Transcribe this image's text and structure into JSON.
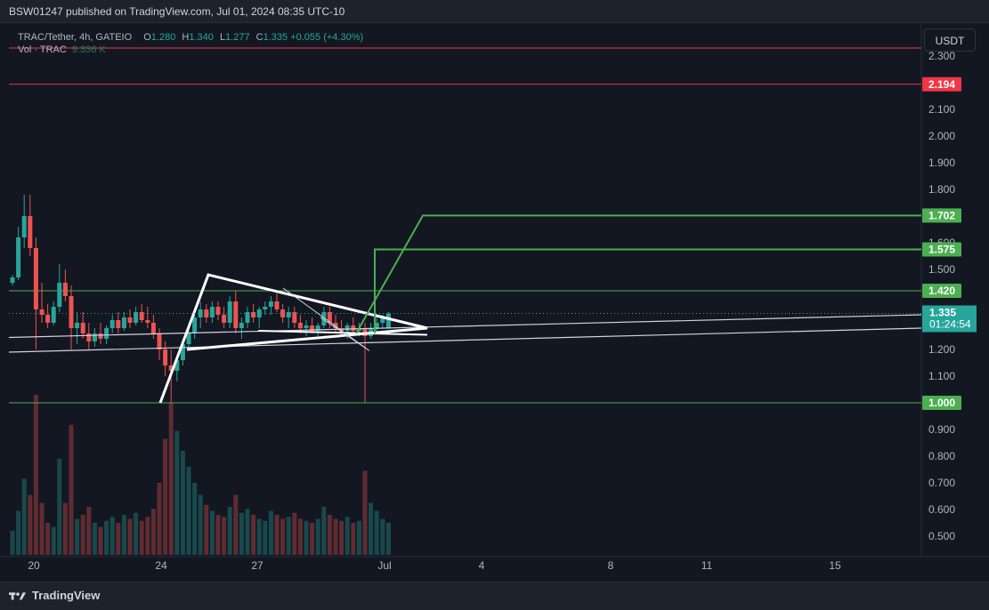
{
  "header": {
    "text": "BSW01247 published on TradingView.com, Jul 01, 2024 08:35 UTC-10"
  },
  "legend": {
    "symbol": "TRAC/Tether, 4h, GATEIO",
    "open_label": "O",
    "open": "1.280",
    "high_label": "H",
    "high": "1.340",
    "low_label": "L",
    "low": "1.277",
    "close_label": "C",
    "close": "1.335",
    "change": "+0.055 (+4.30%)",
    "vol_label": "Vol · TRAC",
    "vol_value": "9.336 K"
  },
  "currency_button": "USDT",
  "footer": {
    "brand": "TradingView"
  },
  "colors": {
    "up": "#26a69a",
    "down": "#ef5350",
    "green_line": "#4caf50",
    "red_line": "#f23645",
    "bg": "#131722"
  },
  "chart_data": {
    "type": "candlestick",
    "symbol": "TRAC/Tether",
    "timeframe": "4h",
    "exchange": "GATEIO",
    "y_ticks": [
      "2.300",
      "2.100",
      "2.000",
      "1.900",
      "1.800",
      "1.600",
      "1.500",
      "1.200",
      "1.100",
      "0.900",
      "0.800",
      "0.700",
      "0.600",
      "0.500"
    ],
    "x_ticks": [
      "20",
      "24",
      "27",
      "Jul",
      "4",
      "8",
      "11",
      "15"
    ],
    "price_labels": [
      {
        "value": "2.194",
        "color": "#f23645"
      },
      {
        "value": "1.702",
        "color": "#4caf50"
      },
      {
        "value": "1.575",
        "color": "#4caf50"
      },
      {
        "value": "1.420",
        "color": "#4caf50"
      },
      {
        "value": "1.000",
        "color": "#4caf50"
      }
    ],
    "current_price": {
      "value": "1.335",
      "countdown": "01:24:54",
      "color": "#26a69a"
    },
    "horizontal_lines": [
      {
        "price": 2.33,
        "color": "#f23645"
      },
      {
        "price": 2.194,
        "color": "#f23645"
      },
      {
        "price": 1.42,
        "color": "#4caf50"
      },
      {
        "price": 1.0,
        "color": "#4caf50"
      }
    ],
    "candles": [
      [
        1.45,
        1.48,
        1.44,
        1.47
      ],
      [
        1.47,
        1.66,
        1.46,
        1.62
      ],
      [
        1.62,
        1.78,
        1.58,
        1.7
      ],
      [
        1.7,
        1.78,
        1.55,
        1.58
      ],
      [
        1.58,
        1.62,
        1.2,
        1.35
      ],
      [
        1.35,
        1.45,
        1.3,
        1.33
      ],
      [
        1.33,
        1.37,
        1.28,
        1.3
      ],
      [
        1.3,
        1.38,
        1.29,
        1.36
      ],
      [
        1.36,
        1.52,
        1.34,
        1.45
      ],
      [
        1.45,
        1.5,
        1.38,
        1.4
      ],
      [
        1.4,
        1.44,
        1.2,
        1.28
      ],
      [
        1.28,
        1.34,
        1.22,
        1.3
      ],
      [
        1.3,
        1.34,
        1.24,
        1.26
      ],
      [
        1.26,
        1.3,
        1.2,
        1.23
      ],
      [
        1.23,
        1.28,
        1.21,
        1.26
      ],
      [
        1.26,
        1.3,
        1.22,
        1.24
      ],
      [
        1.24,
        1.29,
        1.22,
        1.28
      ],
      [
        1.28,
        1.33,
        1.26,
        1.31
      ],
      [
        1.31,
        1.34,
        1.26,
        1.28
      ],
      [
        1.28,
        1.34,
        1.27,
        1.32
      ],
      [
        1.32,
        1.35,
        1.28,
        1.3
      ],
      [
        1.3,
        1.36,
        1.29,
        1.34
      ],
      [
        1.34,
        1.37,
        1.3,
        1.31
      ],
      [
        1.31,
        1.36,
        1.28,
        1.3
      ],
      [
        1.3,
        1.33,
        1.24,
        1.26
      ],
      [
        1.26,
        1.28,
        1.16,
        1.2
      ],
      [
        1.2,
        1.23,
        1.1,
        1.14
      ],
      [
        1.14,
        1.2,
        1.0,
        1.12
      ],
      [
        1.12,
        1.18,
        1.08,
        1.16
      ],
      [
        1.16,
        1.24,
        1.14,
        1.22
      ],
      [
        1.22,
        1.3,
        1.2,
        1.26
      ],
      [
        1.26,
        1.34,
        1.24,
        1.32
      ],
      [
        1.32,
        1.38,
        1.28,
        1.35
      ],
      [
        1.35,
        1.37,
        1.3,
        1.32
      ],
      [
        1.32,
        1.38,
        1.3,
        1.36
      ],
      [
        1.36,
        1.38,
        1.31,
        1.33
      ],
      [
        1.33,
        1.36,
        1.28,
        1.3
      ],
      [
        1.3,
        1.4,
        1.28,
        1.38
      ],
      [
        1.38,
        1.42,
        1.26,
        1.28
      ],
      [
        1.28,
        1.32,
        1.24,
        1.3
      ],
      [
        1.3,
        1.36,
        1.28,
        1.34
      ],
      [
        1.34,
        1.37,
        1.3,
        1.32
      ],
      [
        1.32,
        1.36,
        1.28,
        1.35
      ],
      [
        1.35,
        1.38,
        1.33,
        1.36
      ],
      [
        1.36,
        1.4,
        1.33,
        1.38
      ],
      [
        1.38,
        1.41,
        1.34,
        1.35
      ],
      [
        1.35,
        1.37,
        1.3,
        1.32
      ],
      [
        1.32,
        1.36,
        1.28,
        1.34
      ],
      [
        1.34,
        1.36,
        1.28,
        1.3
      ],
      [
        1.3,
        1.33,
        1.26,
        1.28
      ],
      [
        1.28,
        1.31,
        1.25,
        1.29
      ],
      [
        1.29,
        1.32,
        1.26,
        1.27
      ],
      [
        1.27,
        1.3,
        1.25,
        1.29
      ],
      [
        1.29,
        1.36,
        1.28,
        1.34
      ],
      [
        1.34,
        1.36,
        1.28,
        1.3
      ],
      [
        1.3,
        1.33,
        1.26,
        1.28
      ],
      [
        1.28,
        1.31,
        1.25,
        1.27
      ],
      [
        1.27,
        1.3,
        1.24,
        1.29
      ],
      [
        1.29,
        1.32,
        1.26,
        1.27
      ],
      [
        1.27,
        1.3,
        1.25,
        1.28
      ],
      [
        1.28,
        1.3,
        1.0,
        1.25
      ],
      [
        1.25,
        1.3,
        1.24,
        1.28
      ],
      [
        1.28,
        1.32,
        1.26,
        1.3
      ],
      [
        1.3,
        1.33,
        1.28,
        1.32
      ],
      [
        1.28,
        1.34,
        1.277,
        1.335
      ]
    ],
    "volumes": [
      [
        120,
        1
      ],
      [
        220,
        1
      ],
      [
        380,
        1
      ],
      [
        300,
        0
      ],
      [
        800,
        0
      ],
      [
        260,
        0
      ],
      [
        160,
        0
      ],
      [
        140,
        1
      ],
      [
        480,
        1
      ],
      [
        260,
        0
      ],
      [
        650,
        0
      ],
      [
        180,
        1
      ],
      [
        200,
        0
      ],
      [
        240,
        0
      ],
      [
        160,
        1
      ],
      [
        140,
        0
      ],
      [
        170,
        1
      ],
      [
        190,
        1
      ],
      [
        160,
        0
      ],
      [
        200,
        1
      ],
      [
        180,
        0
      ],
      [
        210,
        1
      ],
      [
        170,
        0
      ],
      [
        190,
        0
      ],
      [
        230,
        0
      ],
      [
        360,
        0
      ],
      [
        580,
        0
      ],
      [
        760,
        0
      ],
      [
        620,
        1
      ],
      [
        520,
        1
      ],
      [
        440,
        1
      ],
      [
        360,
        1
      ],
      [
        300,
        1
      ],
      [
        250,
        0
      ],
      [
        220,
        1
      ],
      [
        200,
        0
      ],
      [
        190,
        0
      ],
      [
        240,
        1
      ],
      [
        300,
        0
      ],
      [
        210,
        1
      ],
      [
        230,
        1
      ],
      [
        200,
        0
      ],
      [
        180,
        1
      ],
      [
        170,
        1
      ],
      [
        220,
        1
      ],
      [
        200,
        0
      ],
      [
        180,
        0
      ],
      [
        190,
        1
      ],
      [
        210,
        0
      ],
      [
        180,
        0
      ],
      [
        170,
        1
      ],
      [
        160,
        0
      ],
      [
        180,
        1
      ],
      [
        240,
        1
      ],
      [
        200,
        0
      ],
      [
        180,
        0
      ],
      [
        170,
        0
      ],
      [
        190,
        1
      ],
      [
        160,
        0
      ],
      [
        170,
        1
      ],
      [
        420,
        0
      ],
      [
        260,
        1
      ],
      [
        220,
        1
      ],
      [
        180,
        1
      ],
      [
        160,
        1
      ]
    ],
    "drawings": {
      "triangle_pattern": [
        [
          1.0,
          1.48
        ],
        [
          1.48,
          1.33
        ],
        [
          1.2,
          1.23
        ]
      ],
      "target_path": [
        1.26,
        1.42,
        1.575,
        1.702
      ]
    }
  }
}
